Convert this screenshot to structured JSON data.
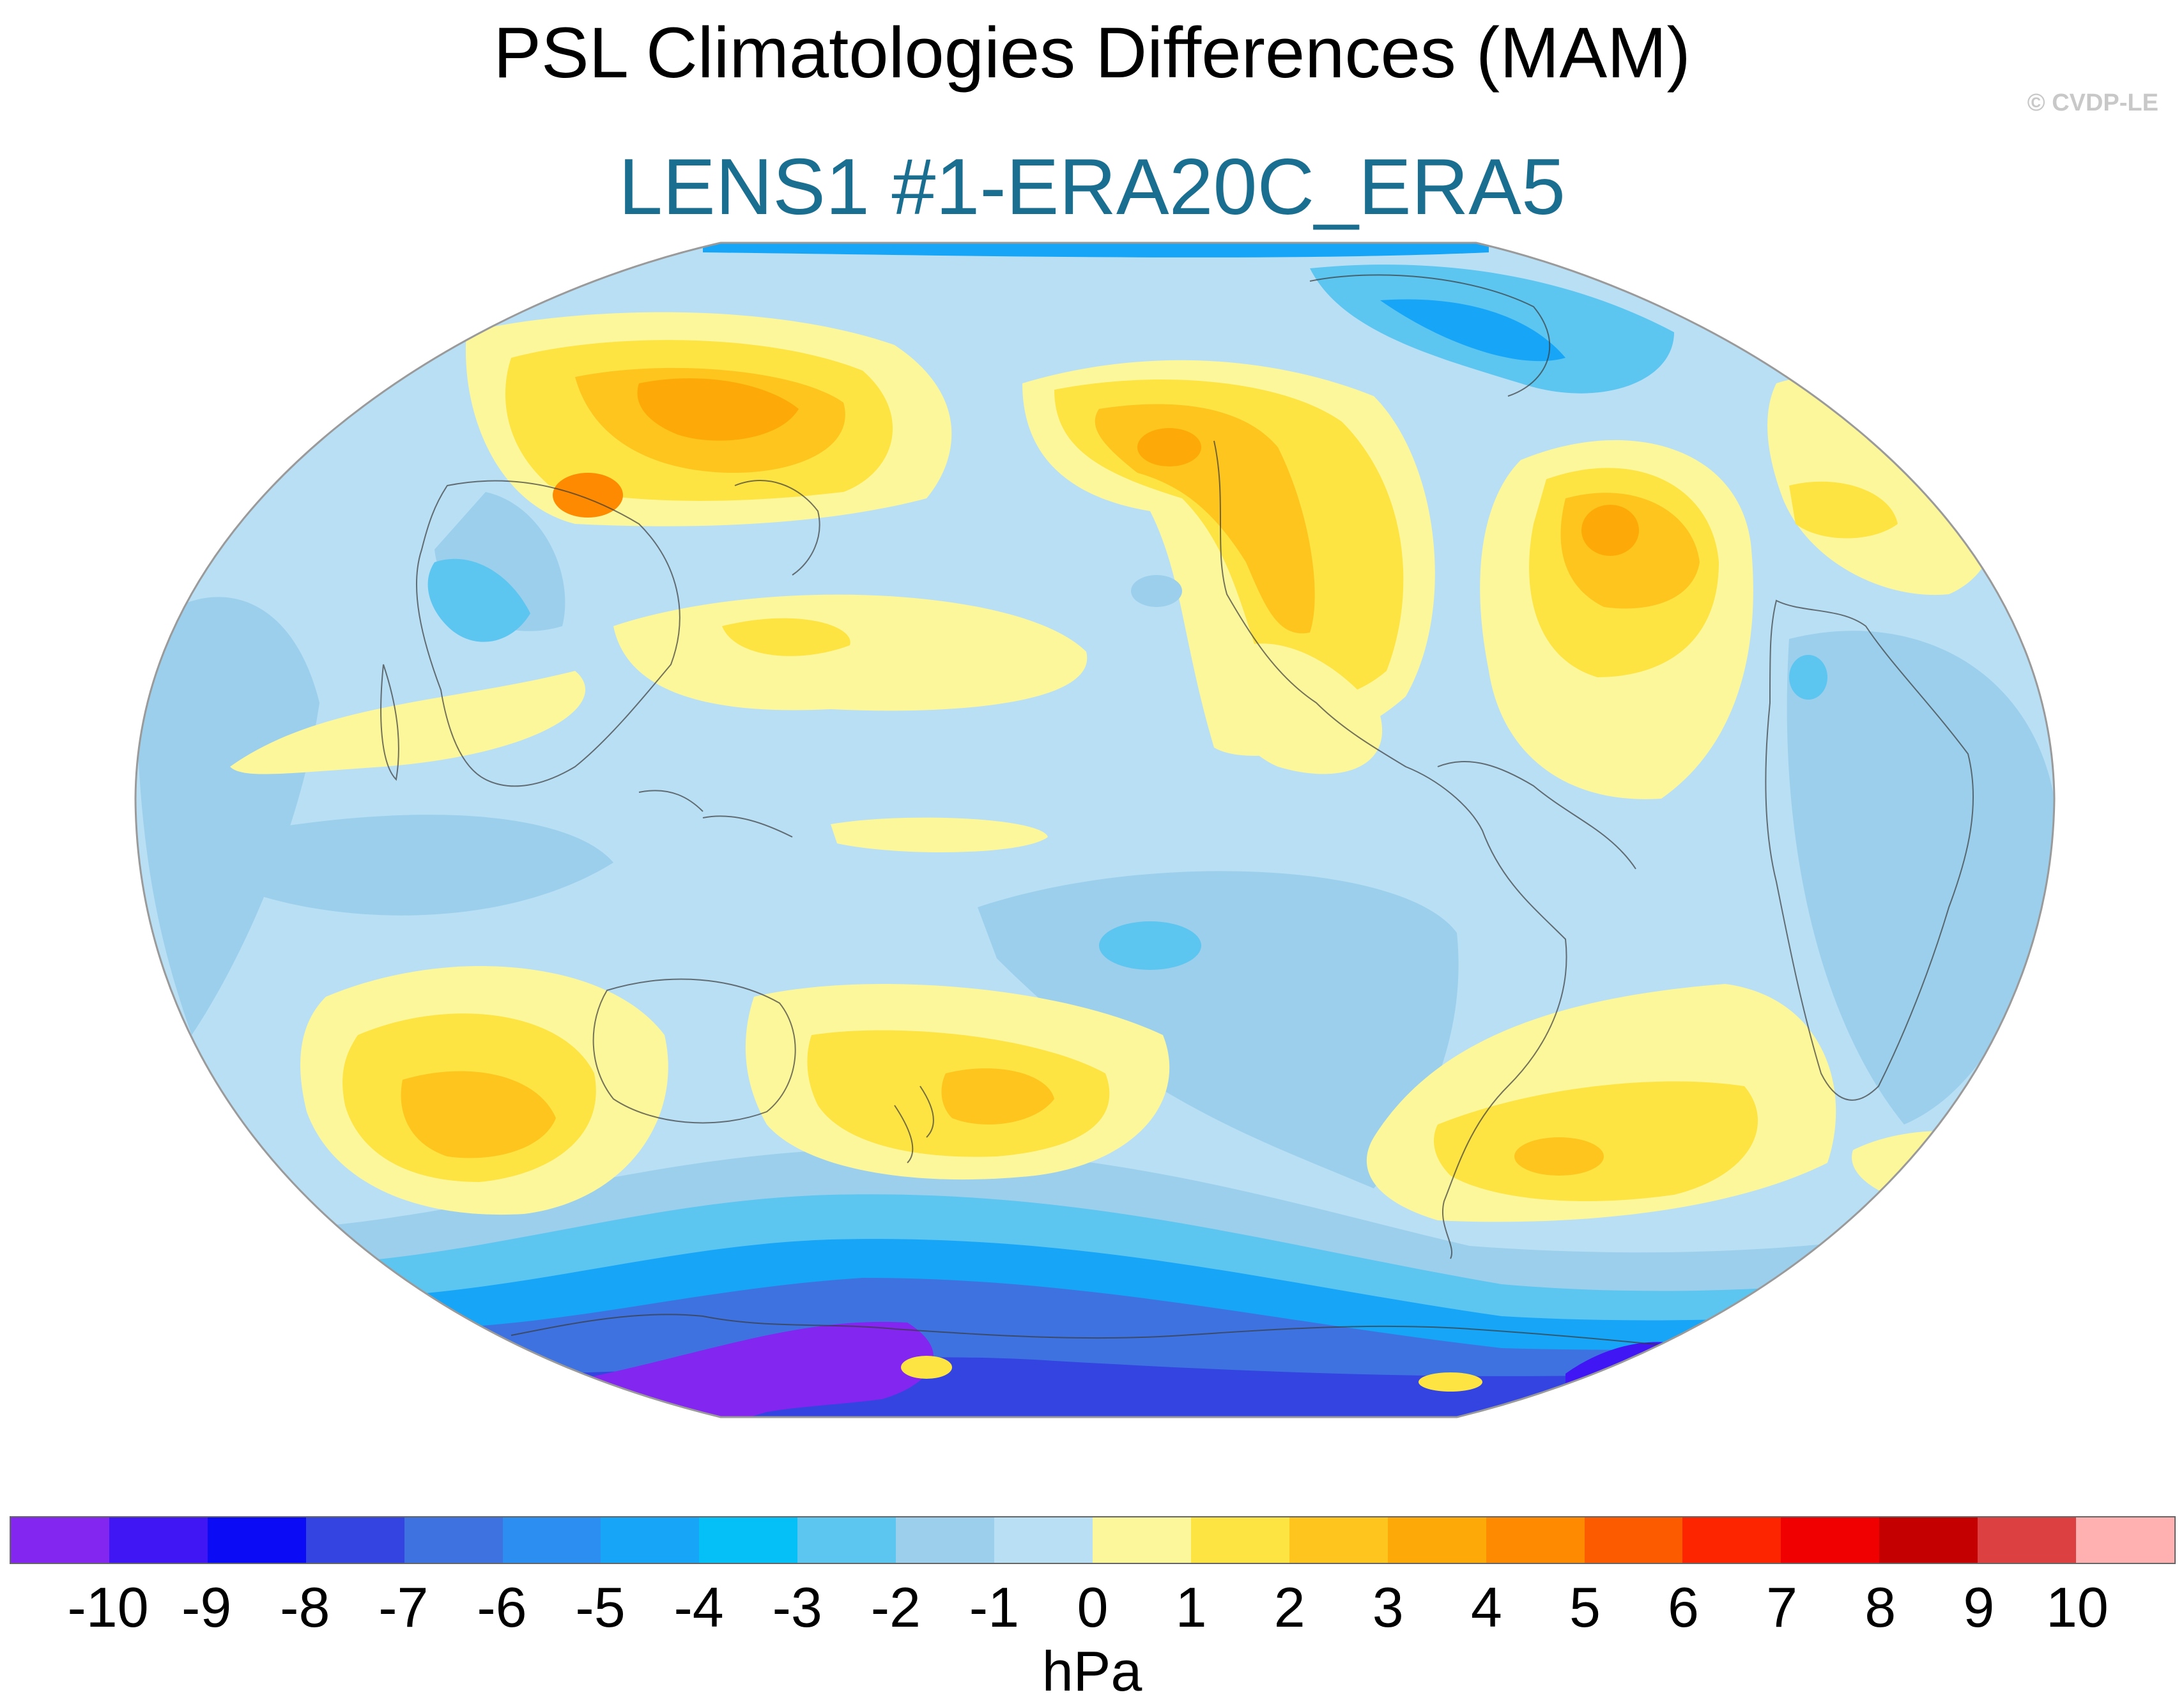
{
  "title": "PSL Climatologies Differences (MAM)",
  "subtitle": "LENS1 #1-ERA20C_ERA5",
  "credit": "© CVDP-LE",
  "colors": {
    "subtitle": "#1a6e8f",
    "ocean_base": "#b9dff4",
    "coastline": "#3a3a3a"
  },
  "colorbar": {
    "unit": "hPa",
    "levels": [
      "-10",
      "-9",
      "-8",
      "-7",
      "-6",
      "-5",
      "-4",
      "-3",
      "-2",
      "-1",
      "0",
      "1",
      "2",
      "3",
      "4",
      "5",
      "6",
      "7",
      "8",
      "9",
      "10"
    ],
    "colors": [
      "#8226f0",
      "#4016f5",
      "#0b0bf5",
      "#3344e0",
      "#3e72e0",
      "#2b8ef0",
      "#16a5f7",
      "#05c0f7",
      "#5cc5f0",
      "#9ccfec",
      "#b9dff4",
      "#fdf79b",
      "#fde443",
      "#fdc51e",
      "#fda907",
      "#fd8a00",
      "#fd5b00",
      "#fd2400",
      "#f00000",
      "#c50000",
      "#dd4040",
      "#ffb0b0"
    ]
  },
  "map": {
    "projection": "Robinson",
    "field": "PSL difference",
    "center_longitude": "180"
  }
}
